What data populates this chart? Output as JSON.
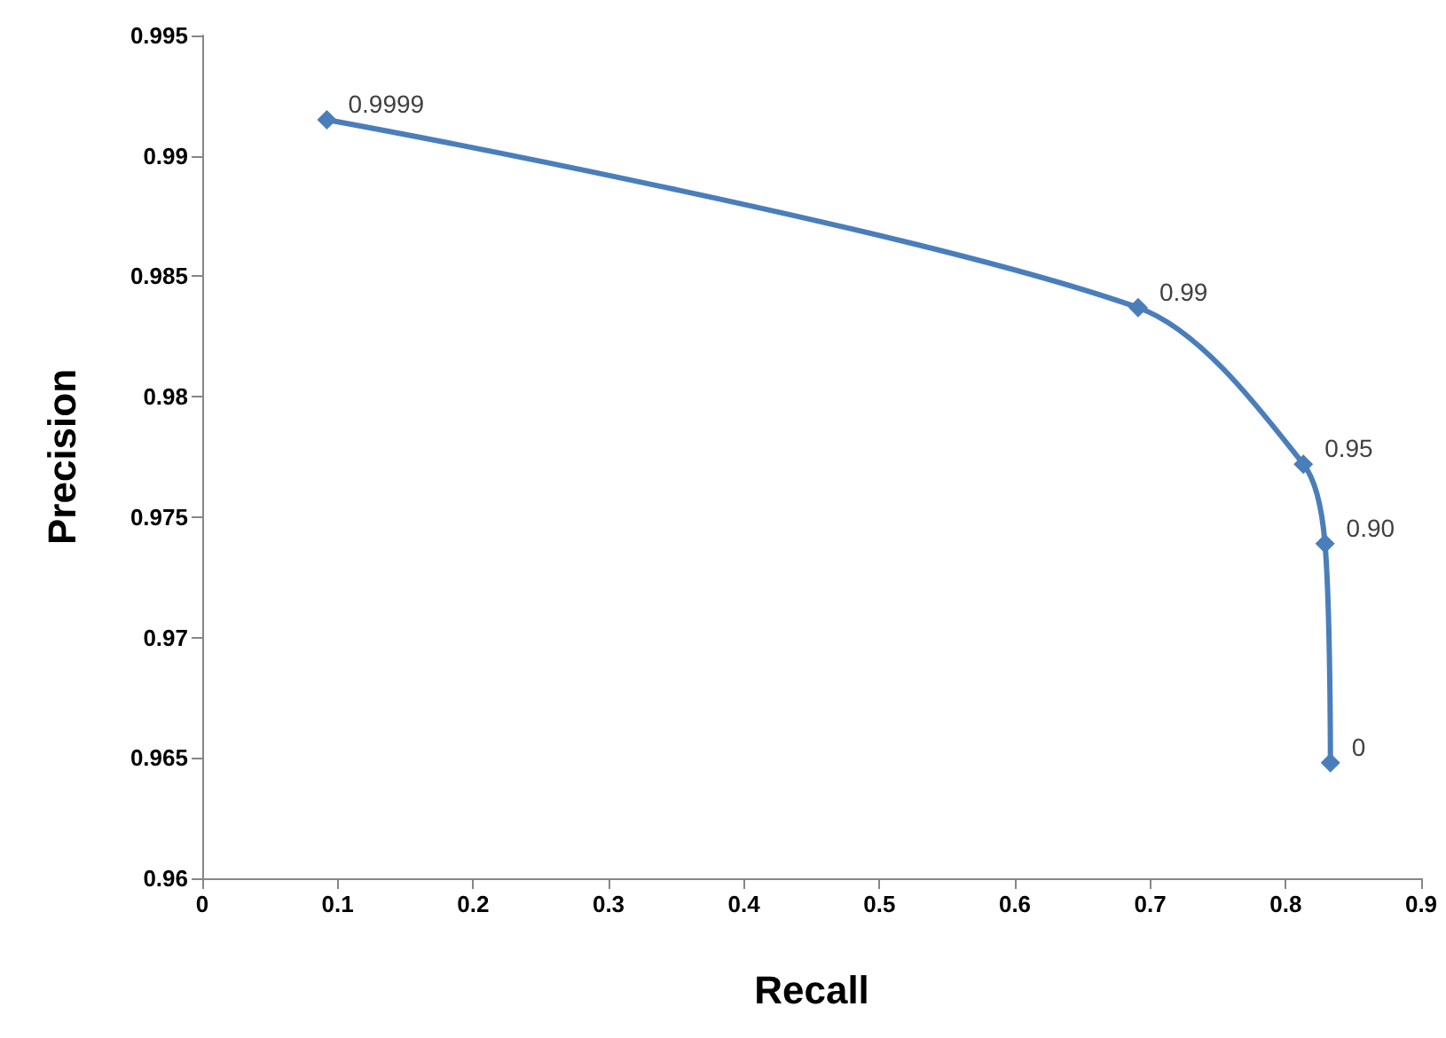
{
  "chart_data": {
    "type": "line",
    "xlabel": "Recall",
    "ylabel": "Precision",
    "x": [
      0.092,
      0.691,
      0.813,
      0.829,
      0.833
    ],
    "series": [
      {
        "color": "#4a7ebb",
        "values": [
          0.9915,
          0.9837,
          0.9772,
          0.9739,
          0.9648
        ]
      }
    ],
    "annotations": [
      {
        "text": "0.9999",
        "x": 0.092,
        "y": 0.9915
      },
      {
        "text": "0.99",
        "x": 0.691,
        "y": 0.9837
      },
      {
        "text": "0.95",
        "x": 0.813,
        "y": 0.9772
      },
      {
        "text": "0.90",
        "x": 0.829,
        "y": 0.9739
      },
      {
        "text": "0",
        "x": 0.833,
        "y": 0.9648
      }
    ],
    "xlim": [
      0,
      0.9
    ],
    "xticks": [
      0,
      0.1,
      0.2,
      0.3,
      0.4,
      0.5,
      0.6,
      0.7,
      0.8,
      0.9
    ],
    "ylim": [
      0.96,
      0.995
    ],
    "yticks": [
      0.96,
      0.965,
      0.97,
      0.975,
      0.98,
      0.985,
      0.99,
      0.995
    ],
    "grid": false,
    "marker": "diamond",
    "line_style": "solid"
  }
}
